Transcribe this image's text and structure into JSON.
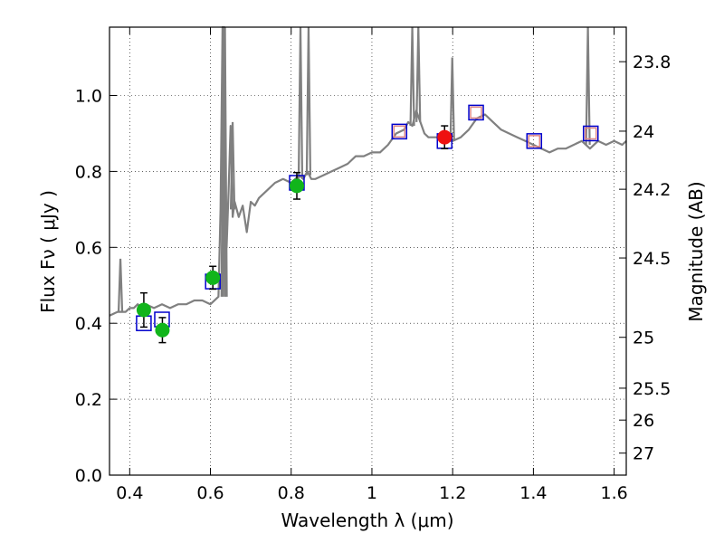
{
  "chart_data": {
    "type": "scatter",
    "xlabel": "Wavelength  λ (μm)",
    "ylabel": "Flux  Fν  ( μJy )",
    "ylabel_right": "Magnitude (AB)",
    "xlim": [
      0.35,
      1.63
    ],
    "ylim": [
      0.0,
      1.18
    ],
    "x_ticks": [
      0.4,
      0.6,
      0.8,
      1.0,
      1.2,
      1.4,
      1.6
    ],
    "x_tick_labels": [
      "0.4",
      "0.6",
      "0.8",
      "1",
      "1.2",
      "1.4",
      "1.6"
    ],
    "y_ticks": [
      0.0,
      0.2,
      0.4,
      0.6,
      0.8,
      1.0
    ],
    "y_tick_labels": [
      "0.0",
      "0.2",
      "0.4",
      "0.6",
      "0.8",
      "1.0"
    ],
    "right_ticks": [
      {
        "label": "23.8",
        "flux": 1.089
      },
      {
        "label": "24",
        "flux": 0.906
      },
      {
        "label": "24.2",
        "flux": 0.753
      },
      {
        "label": "24.5",
        "flux": 0.572
      },
      {
        "label": "25",
        "flux": 0.363
      },
      {
        "label": "25.5",
        "flux": 0.229
      },
      {
        "label": "26",
        "flux": 0.145
      },
      {
        "label": "27",
        "flux": 0.058
      }
    ],
    "grid": true,
    "colors": {
      "spectrum": "#808080",
      "model_box": "#0000cc",
      "green": "#11b51b",
      "red": "#ee1111",
      "box_inner": "#dd8888",
      "errorbar": "#000000"
    },
    "spectrum": {
      "x": [
        0.35,
        0.37,
        0.39,
        0.4,
        0.41,
        0.42,
        0.43,
        0.44,
        0.46,
        0.48,
        0.5,
        0.52,
        0.54,
        0.56,
        0.58,
        0.6,
        0.62,
        0.625,
        0.63,
        0.632,
        0.634,
        0.636,
        0.64,
        0.645,
        0.65,
        0.655,
        0.66,
        0.67,
        0.68,
        0.69,
        0.7,
        0.71,
        0.72,
        0.74,
        0.76,
        0.78,
        0.8,
        0.82,
        0.83,
        0.84,
        0.85,
        0.86,
        0.88,
        0.9,
        0.92,
        0.94,
        0.96,
        0.98,
        1.0,
        1.02,
        1.04,
        1.06,
        1.08,
        1.09,
        1.1,
        1.11,
        1.12,
        1.13,
        1.14,
        1.16,
        1.18,
        1.2,
        1.22,
        1.24,
        1.26,
        1.28,
        1.3,
        1.32,
        1.34,
        1.36,
        1.38,
        1.4,
        1.42,
        1.44,
        1.46,
        1.48,
        1.5,
        1.52,
        1.54,
        1.56,
        1.58,
        1.6,
        1.62,
        1.63
      ],
      "y": [
        0.42,
        0.43,
        0.43,
        0.44,
        0.44,
        0.45,
        0.44,
        0.45,
        0.44,
        0.45,
        0.44,
        0.45,
        0.45,
        0.46,
        0.46,
        0.45,
        0.47,
        0.7,
        1.25,
        0.9,
        1.25,
        0.7,
        0.6,
        0.75,
        0.92,
        0.68,
        0.72,
        0.68,
        0.71,
        0.64,
        0.72,
        0.71,
        0.73,
        0.75,
        0.77,
        0.78,
        0.77,
        0.79,
        0.78,
        0.8,
        0.78,
        0.78,
        0.79,
        0.8,
        0.81,
        0.82,
        0.84,
        0.84,
        0.85,
        0.85,
        0.87,
        0.9,
        0.91,
        0.93,
        0.92,
        0.96,
        0.93,
        0.9,
        0.89,
        0.89,
        0.88,
        0.88,
        0.89,
        0.91,
        0.94,
        0.95,
        0.93,
        0.91,
        0.9,
        0.89,
        0.88,
        0.87,
        0.86,
        0.85,
        0.86,
        0.86,
        0.87,
        0.88,
        0.86,
        0.88,
        0.87,
        0.88,
        0.87,
        0.88
      ]
    },
    "emission_lines": [
      {
        "x": 0.377,
        "peak": 0.57,
        "base": 0.43
      },
      {
        "x": 0.632,
        "peak": 1.18,
        "base": 0.47
      },
      {
        "x": 0.636,
        "peak": 1.18,
        "base": 0.47
      },
      {
        "x": 0.655,
        "peak": 0.93,
        "base": 0.7
      },
      {
        "x": 0.823,
        "peak": 1.18,
        "base": 0.78
      },
      {
        "x": 0.843,
        "peak": 1.18,
        "base": 0.79
      },
      {
        "x": 1.1,
        "peak": 1.18,
        "base": 0.92
      },
      {
        "x": 1.115,
        "peak": 1.18,
        "base": 0.93
      },
      {
        "x": 1.199,
        "peak": 1.1,
        "base": 0.88
      },
      {
        "x": 1.535,
        "peak": 1.18,
        "base": 0.87
      }
    ],
    "model_points": [
      {
        "x": 0.435,
        "y": 0.4
      },
      {
        "x": 0.48,
        "y": 0.41
      },
      {
        "x": 0.606,
        "y": 0.51
      },
      {
        "x": 0.814,
        "y": 0.77
      },
      {
        "x": 1.068,
        "y": 0.905
      },
      {
        "x": 1.18,
        "y": 0.88
      },
      {
        "x": 1.258,
        "y": 0.955
      },
      {
        "x": 1.402,
        "y": 0.88
      },
      {
        "x": 1.542,
        "y": 0.9
      }
    ],
    "observed_green": [
      {
        "x": 0.435,
        "y": 0.435,
        "err": 0.045
      },
      {
        "x": 0.481,
        "y": 0.382,
        "err": 0.033
      },
      {
        "x": 0.606,
        "y": 0.52,
        "err": 0.03
      },
      {
        "x": 0.814,
        "y": 0.762,
        "err": 0.035
      }
    ],
    "observed_red": [
      {
        "x": 1.18,
        "y": 0.89,
        "err": 0.03
      }
    ],
    "observed_boxes": [
      {
        "x": 1.068,
        "y": 0.905
      },
      {
        "x": 1.258,
        "y": 0.955
      },
      {
        "x": 1.402,
        "y": 0.88
      },
      {
        "x": 1.542,
        "y": 0.9
      }
    ]
  }
}
